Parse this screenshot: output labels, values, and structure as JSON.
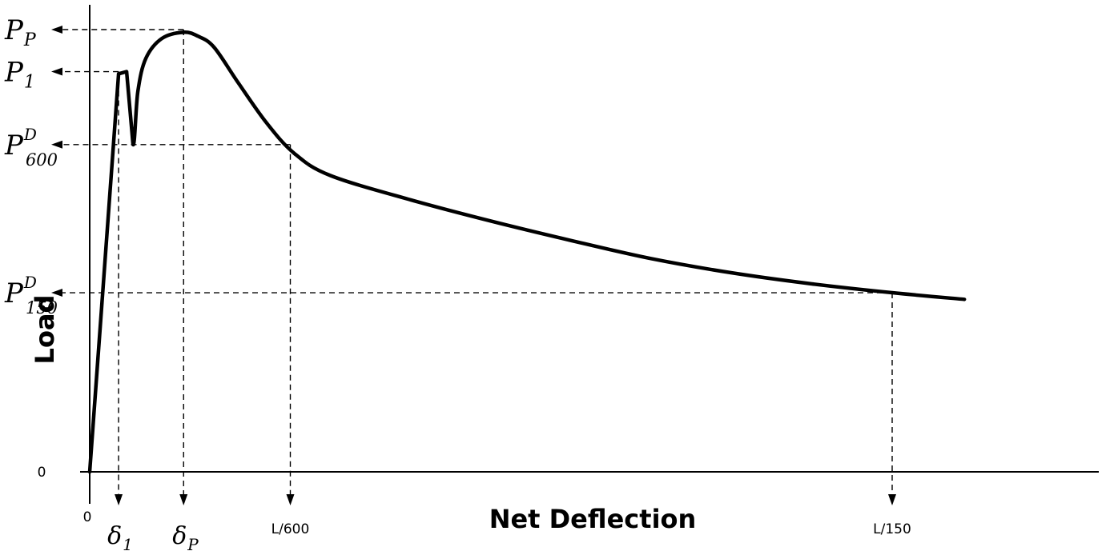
{
  "chart_data": {
    "type": "line",
    "title": "",
    "xlabel": "Net Deflection",
    "ylabel": "Load",
    "grid": false,
    "legend": "none",
    "x_origin_label": "0",
    "y_origin_label": "0",
    "series": [
      {
        "points": [
          [
            0,
            0
          ],
          [
            0.036,
            0.9
          ],
          [
            0.046,
            0.905
          ],
          [
            0.054,
            0.74
          ],
          [
            0.06,
            0.86
          ],
          [
            0.07,
            0.935
          ],
          [
            0.09,
            0.98
          ],
          [
            0.117,
            0.994
          ],
          [
            0.135,
            0.985
          ],
          [
            0.155,
            0.96
          ],
          [
            0.185,
            0.88
          ],
          [
            0.22,
            0.79
          ],
          [
            0.255,
            0.72
          ],
          [
            0.3,
            0.67
          ],
          [
            0.4,
            0.615
          ],
          [
            0.5,
            0.567
          ],
          [
            0.6,
            0.523
          ],
          [
            0.7,
            0.482
          ],
          [
            0.8,
            0.45
          ],
          [
            0.9,
            0.425
          ],
          [
            1.0,
            0.405
          ],
          [
            1.09,
            0.39
          ]
        ]
      }
    ],
    "y_markers": [
      {
        "symbol": "P",
        "sub": "P",
        "sup": "",
        "value": 1.0,
        "x_end": 0.117
      },
      {
        "symbol": "P",
        "sub": "1",
        "sup": "",
        "value": 0.905,
        "x_end": 0.036
      },
      {
        "symbol": "P",
        "sub": "600",
        "sup": "D",
        "value": 0.74,
        "x_end": 0.25
      },
      {
        "symbol": "P",
        "sub": "150",
        "sup": "D",
        "value": 0.405,
        "x_end": 1.0
      }
    ],
    "x_markers": [
      {
        "symbol": "δ",
        "sub": "1",
        "text": "",
        "value": 0.036,
        "y_start": 0.905
      },
      {
        "symbol": "δ",
        "sub": "P",
        "text": "",
        "value": 0.117,
        "y_start": 1.0
      },
      {
        "symbol": "",
        "sub": "",
        "text": "L/600",
        "value": 0.25,
        "y_start": 0.74
      },
      {
        "symbol": "",
        "sub": "",
        "text": "L/150",
        "value": 1.0,
        "y_start": 0.405
      }
    ],
    "colors": {
      "line": "#000000",
      "background": "#ffffff"
    }
  }
}
